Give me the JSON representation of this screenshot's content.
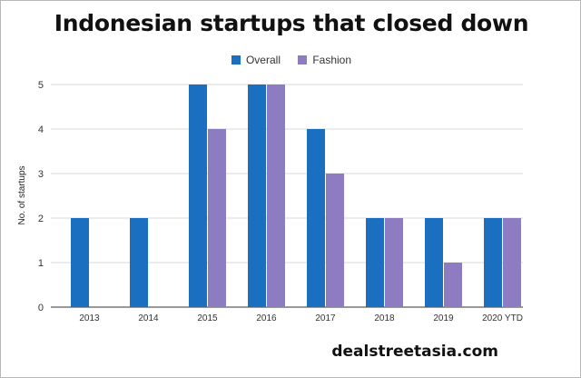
{
  "chart_data": {
    "type": "bar",
    "title": "Indonesian startups that closed down",
    "categories": [
      "2013",
      "2014",
      "2015",
      "2016",
      "2017",
      "2018",
      "2019",
      "2020 YTD"
    ],
    "series": [
      {
        "name": "Overall",
        "color": "#1a6fc1",
        "values": [
          2,
          2,
          5,
          5,
          4,
          2,
          2,
          2
        ]
      },
      {
        "name": "Fashion",
        "color": "#8e7cc3",
        "values": [
          0,
          0,
          4,
          5,
          3,
          2,
          1,
          2
        ]
      }
    ],
    "xlabel": "",
    "ylabel": "No. of startups",
    "ylim": [
      0,
      5
    ],
    "yticks": [
      "0",
      "1",
      "2",
      "3",
      "4",
      "5"
    ],
    "grid": true,
    "legend": "top-center"
  },
  "branding": "dealstreetasia.com"
}
